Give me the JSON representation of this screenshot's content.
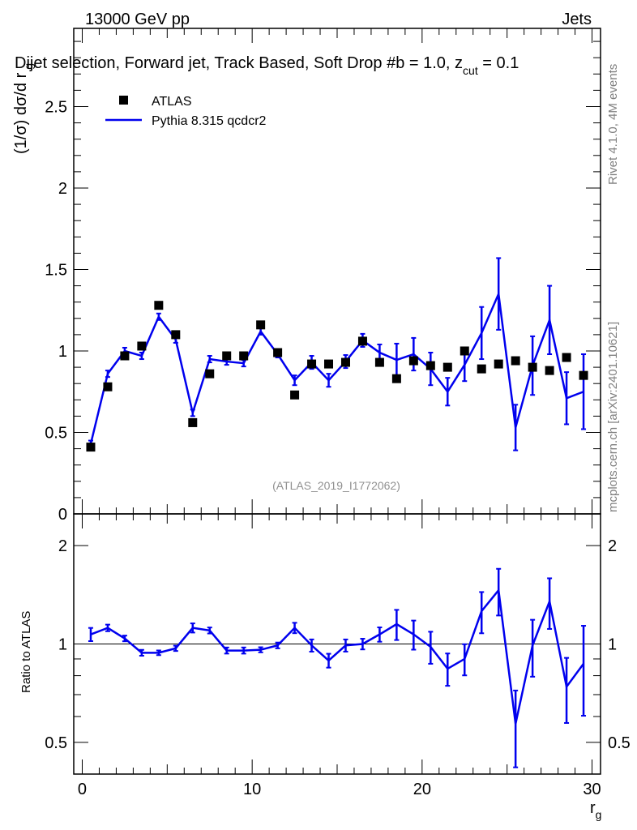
{
  "header": {
    "left": "13000 GeV pp",
    "right": "Jets",
    "title": "Dijet selection, Forward jet, Track Based, Soft Drop #b = 1.0, z",
    "title_sub": "cut",
    "title_end": " = 0.1"
  },
  "side_text": {
    "rivet": "Rivet 4.1.0,  4M events",
    "mcplots": "mcplots.cern.ch [arXiv:2401.10621]"
  },
  "watermark": "(ATLAS_2019_I1772062)",
  "colors": {
    "data": "#000000",
    "mc": "#0000ee",
    "gray": "#808080"
  },
  "chart_data": [
    {
      "type": "scatter",
      "panel": "main",
      "ylabel": "(1/σ) dσ/d r",
      "ylabel_sub": "g",
      "xlim": [
        -0.5,
        30.5
      ],
      "ylim": [
        0,
        2.98
      ],
      "yticks": [
        0,
        0.5,
        1,
        1.5,
        2,
        2.5
      ],
      "ytick_labels": [
        "0",
        "0.5",
        "1",
        "1.5",
        "2",
        "2.5"
      ],
      "legend": {
        "placement": "top-left",
        "entries": [
          "ATLAS",
          "Pythia 8.315 qcdcr2"
        ]
      },
      "x": [
        0.5,
        1.5,
        2.5,
        3.5,
        4.5,
        5.5,
        6.5,
        7.5,
        8.5,
        9.5,
        10.5,
        11.5,
        12.5,
        13.5,
        14.5,
        15.5,
        16.5,
        17.5,
        18.5,
        19.5,
        20.5,
        21.5,
        22.5,
        23.5,
        24.5,
        25.5,
        26.5,
        27.5,
        28.5,
        29.5
      ],
      "series": [
        {
          "name": "ATLAS",
          "style": "markers",
          "values": [
            0.41,
            0.78,
            0.97,
            1.03,
            1.28,
            1.1,
            0.56,
            0.86,
            0.97,
            0.97,
            1.16,
            0.99,
            0.73,
            0.92,
            0.92,
            0.93,
            1.06,
            0.93,
            0.83,
            0.94,
            0.91,
            0.9,
            1.0,
            0.89,
            0.92,
            0.94,
            0.9,
            0.88,
            0.96,
            0.85
          ]
        },
        {
          "name": "Pythia 8.315 qcdcr2",
          "style": "line",
          "values": [
            0.43,
            0.86,
            1.0,
            0.97,
            1.21,
            1.07,
            0.62,
            0.95,
            0.935,
            0.925,
            1.12,
            0.98,
            0.82,
            0.93,
            0.82,
            0.935,
            1.065,
            0.99,
            0.945,
            0.98,
            0.89,
            0.75,
            0.915,
            1.11,
            1.35,
            0.53,
            0.91,
            1.19,
            0.71,
            0.75
          ],
          "errors": [
            0.02,
            0.02,
            0.02,
            0.02,
            0.02,
            0.02,
            0.02,
            0.02,
            0.02,
            0.02,
            0.02,
            0.02,
            0.03,
            0.04,
            0.04,
            0.04,
            0.04,
            0.05,
            0.1,
            0.1,
            0.1,
            0.085,
            0.1,
            0.16,
            0.22,
            0.14,
            0.18,
            0.21,
            0.16,
            0.23
          ]
        }
      ]
    },
    {
      "type": "line",
      "panel": "ratio",
      "ylabel": "Ratio to ATLAS",
      "xlabel": "r",
      "xlabel_sub": "g",
      "xlim": [
        -0.5,
        30.5
      ],
      "ylim": [
        0.4,
        2.5
      ],
      "yscale": "log",
      "xticks": [
        0,
        10,
        20,
        30
      ],
      "xtick_labels": [
        "0",
        "10",
        "20",
        "30"
      ],
      "yticks": [
        0.5,
        1,
        2
      ],
      "ytick_labels": [
        "0.5",
        "1",
        "2"
      ],
      "reference_line": 1,
      "x": [
        0.5,
        1.5,
        2.5,
        3.5,
        4.5,
        5.5,
        6.5,
        7.5,
        8.5,
        9.5,
        10.5,
        11.5,
        12.5,
        13.5,
        14.5,
        15.5,
        16.5,
        17.5,
        18.5,
        19.5,
        20.5,
        21.5,
        22.5,
        23.5,
        24.5,
        25.5,
        26.5,
        27.5,
        28.5,
        29.5
      ],
      "series": [
        {
          "name": "Pythia 8.315 qcdcr2 / ATLAS",
          "values": [
            1.07,
            1.12,
            1.04,
            0.94,
            0.94,
            0.97,
            1.12,
            1.1,
            0.955,
            0.955,
            0.96,
            0.99,
            1.12,
            0.99,
            0.89,
            0.99,
            1.0,
            1.07,
            1.15,
            1.07,
            0.98,
            0.84,
            0.9,
            1.26,
            1.46,
            0.57,
            0.99,
            1.35,
            0.74,
            0.87
          ]
        }
      ]
    }
  ]
}
